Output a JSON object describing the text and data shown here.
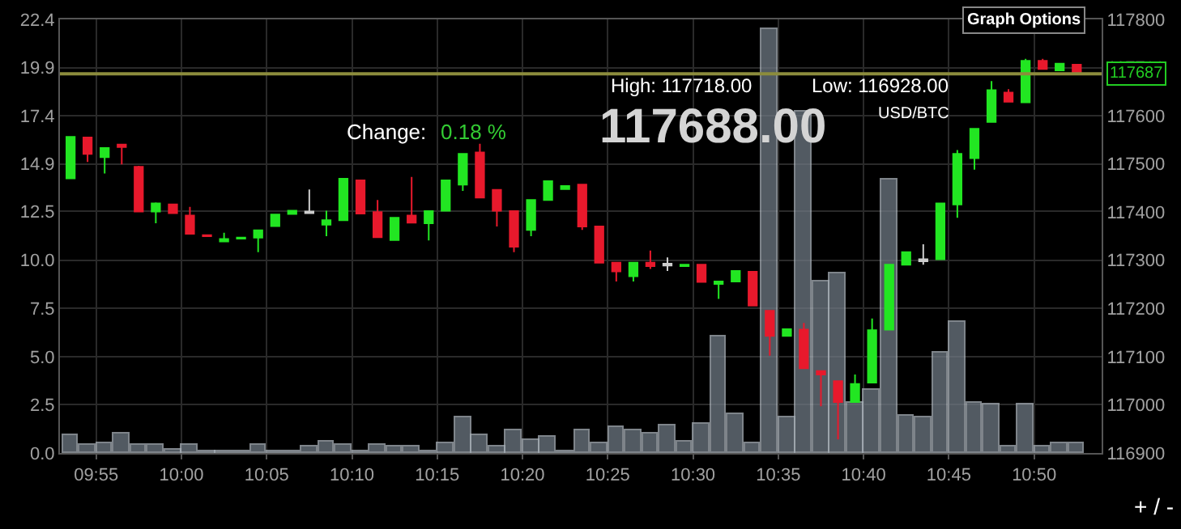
{
  "chart_data": {
    "type": "candlestick",
    "x": [
      9.8917,
      9.9083,
      9.925,
      9.9417,
      9.9583,
      9.975,
      9.9917,
      10.0083,
      10.025,
      10.0417,
      10.0583,
      10.075,
      10.0917,
      10.1083,
      10.125,
      10.1417,
      10.1583,
      10.175,
      10.1917,
      10.2083,
      10.225,
      10.2417,
      10.2583,
      10.275,
      10.2917,
      10.3083,
      10.325,
      10.3417,
      10.3583,
      10.375,
      10.3917,
      10.4083,
      10.425,
      10.4417,
      10.4583,
      10.475,
      10.4917,
      10.5083,
      10.525,
      10.5417,
      10.5583,
      10.575,
      10.5917,
      10.6083,
      10.625,
      10.6417,
      10.6583,
      10.675,
      10.6917,
      10.7083,
      10.725,
      10.7417,
      10.7583,
      10.775,
      10.7917,
      10.8083,
      10.825,
      10.8417,
      10.8583,
      10.875
    ],
    "series": [
      {
        "type": "bar",
        "color": "#6e7883",
        "values": [
          0.9,
          0.4,
          0.5,
          1.0,
          0.4,
          0.4,
          0.2,
          0.4,
          0.1,
          0.1,
          0.1,
          0.4,
          0.1,
          0.1,
          0.3,
          0.6,
          0.4,
          0.1,
          0.4,
          0.3,
          0.3,
          0.1,
          0.5,
          1.8,
          0.9,
          0.3,
          1.2,
          0.7,
          0.8,
          0.1,
          1.2,
          0.5,
          1.3,
          1.2,
          1.0,
          1.4,
          0.6,
          1.5,
          6.0,
          2.0,
          0.5,
          21.9,
          1.8,
          17.6,
          8.9,
          9.3,
          2.6,
          3.3,
          14.1,
          1.9,
          1.8,
          5.2,
          6.8,
          2.6,
          2.5,
          0.3,
          2.5,
          0.3,
          0.5,
          0.5
        ]
      },
      {
        "axis": "y2",
        "ohlc": [
          [
            117470,
            117556,
            117470,
            117556
          ],
          [
            117555,
            117556,
            117504,
            117521
          ],
          [
            117514,
            117533,
            117480,
            117533
          ],
          [
            117540,
            117541,
            117499,
            117535
          ],
          [
            117494,
            117496,
            117401,
            117401
          ],
          [
            117401,
            117420,
            117377,
            117418
          ],
          [
            117416,
            117416,
            117398,
            117398
          ],
          [
            117393,
            117411,
            117355,
            117355
          ],
          [
            117352,
            117352,
            117350,
            117350
          ],
          [
            117339,
            117357,
            117339,
            117344
          ],
          [
            117345,
            117347,
            117345,
            117347
          ],
          [
            117347,
            117364,
            117317,
            117362
          ],
          [
            117371,
            117395,
            117371,
            117395
          ],
          [
            117396,
            117403,
            117396,
            117403
          ],
          [
            117398,
            117447,
            117398,
            117401
          ],
          [
            117374,
            117403,
            117350,
            117383
          ],
          [
            117383,
            117469,
            117383,
            117469
          ],
          [
            117466,
            117466,
            117397,
            117397
          ],
          [
            117400,
            117425,
            117348,
            117348
          ],
          [
            117342,
            117388,
            117342,
            117388
          ],
          [
            117393,
            117473,
            117378,
            117378
          ],
          [
            117377,
            117402,
            117341,
            117402
          ],
          [
            117403,
            117466,
            117403,
            117466
          ],
          [
            117457,
            117521,
            117444,
            117521
          ],
          [
            117524,
            117542,
            117430,
            117430
          ],
          [
            117446,
            117446,
            117370,
            117403
          ],
          [
            117402,
            117402,
            117317,
            117328
          ],
          [
            117363,
            117425,
            117350,
            117425
          ],
          [
            117425,
            117464,
            117425,
            117464
          ],
          [
            117448,
            117454,
            117448,
            117454
          ],
          [
            117457,
            117457,
            117363,
            117370
          ],
          [
            117370,
            117370,
            117295,
            117295
          ],
          [
            117295,
            117295,
            117256,
            117277
          ],
          [
            117267,
            117295,
            117256,
            117295
          ],
          [
            117295,
            117320,
            117282,
            117288
          ],
          [
            117289,
            117306,
            117278,
            117293
          ],
          [
            117288,
            117291,
            117288,
            117291
          ],
          [
            117291,
            117291,
            117255,
            117255
          ],
          [
            117251,
            117256,
            117220,
            117256
          ],
          [
            117256,
            117278,
            117256,
            117278
          ],
          [
            117276,
            117276,
            117206,
            117206
          ],
          [
            117195,
            117195,
            117102,
            117143
          ],
          [
            117143,
            117157,
            117143,
            117157
          ],
          [
            117156,
            117170,
            117076,
            117076
          ],
          [
            117070,
            117070,
            116997,
            117063
          ],
          [
            117049,
            117049,
            116928,
            117006
          ],
          [
            117006,
            117063,
            117006,
            117043
          ],
          [
            117046,
            117179,
            117046,
            117155
          ],
          [
            117156,
            117291,
            117156,
            117291
          ],
          [
            117291,
            117317,
            117291,
            117317
          ],
          [
            117298,
            117333,
            117291,
            117302
          ],
          [
            117302,
            117418,
            117302,
            117418
          ],
          [
            117416,
            117529,
            117388,
            117521
          ],
          [
            117512,
            117573,
            117488,
            117573
          ],
          [
            117587,
            117672,
            117587,
            117653
          ],
          [
            117648,
            117655,
            117629,
            117629
          ],
          [
            117628,
            117718,
            117628,
            117714
          ],
          [
            117714,
            117718,
            117697,
            117697
          ],
          [
            117694,
            117708,
            117694,
            117708
          ],
          [
            117706,
            117706,
            117688,
            117688
          ]
        ],
        "colors": [
          "#22e622",
          "#e8192c",
          "#22e622",
          "#e8192c",
          "#e8192c",
          "#22e622",
          "#e8192c",
          "#e8192c",
          "#e8192c",
          "#22e622",
          "#22e622",
          "#22e622",
          "#22e622",
          "#22e622",
          "#cccccc",
          "#22e622",
          "#22e622",
          "#e8192c",
          "#e8192c",
          "#22e622",
          "#e8192c",
          "#22e622",
          "#22e622",
          "#22e622",
          "#e8192c",
          "#e8192c",
          "#e8192c",
          "#22e622",
          "#22e622",
          "#22e622",
          "#e8192c",
          "#e8192c",
          "#e8192c",
          "#22e622",
          "#e8192c",
          "#cccccc",
          "#22e622",
          "#e8192c",
          "#22e622",
          "#22e622",
          "#e8192c",
          "#e8192c",
          "#22e622",
          "#e8192c",
          "#e8192c",
          "#e8192c",
          "#22e622",
          "#22e622",
          "#22e622",
          "#22e622",
          "#cccccc",
          "#22e622",
          "#22e622",
          "#22e622",
          "#22e622",
          "#e8192c",
          "#22e622",
          "#e8192c",
          "#22e622",
          "#e8192c"
        ]
      }
    ],
    "xlim": [
      9.8813,
      10.8993
    ],
    "xticks": [
      {
        "value": 9.916667,
        "label": "09:55"
      },
      {
        "value": 10.0,
        "label": "10:00"
      },
      {
        "value": 10.083333,
        "label": "10:05"
      },
      {
        "value": 10.166667,
        "label": "10:10"
      },
      {
        "value": 10.25,
        "label": "10:15"
      },
      {
        "value": 10.333333,
        "label": "10:20"
      },
      {
        "value": 10.416667,
        "label": "10:25"
      },
      {
        "value": 10.5,
        "label": "10:30"
      },
      {
        "value": 10.583333,
        "label": "10:35"
      },
      {
        "value": 10.666667,
        "label": "10:40"
      },
      {
        "value": 10.75,
        "label": "10:45"
      },
      {
        "value": 10.833333,
        "label": "10:50"
      }
    ],
    "ylim": [
      0,
      22.4
    ],
    "yticks": [
      {
        "value": 0,
        "label": "0.0"
      },
      {
        "value": 2.49,
        "label": "2.5"
      },
      {
        "value": 4.98,
        "label": "5.0"
      },
      {
        "value": 7.47,
        "label": "7.5"
      },
      {
        "value": 9.96,
        "label": "10.0"
      },
      {
        "value": 12.5,
        "label": "12.5"
      },
      {
        "value": 14.93,
        "label": "14.9"
      },
      {
        "value": 17.42,
        "label": "17.4"
      },
      {
        "value": 19.91,
        "label": "19.9"
      },
      {
        "value": 22.4,
        "label": "22.4"
      }
    ],
    "y2lim": [
      116900,
      117800
    ],
    "y2ticks": [
      116900,
      117000,
      117100,
      117200,
      117300,
      117400,
      117500,
      117600,
      117700,
      117800
    ],
    "ref_lines": [
      {
        "axis": "y2",
        "value": 117687,
        "label": "117687",
        "color": "#8c8c3c"
      }
    ],
    "annotations": [
      "Change:",
      "0.18 %",
      "117688.00",
      "High: 117718.00",
      "Low: 116928.00",
      "USD/BTC",
      "Graph Options",
      "+ / -"
    ],
    "grid": true
  }
}
